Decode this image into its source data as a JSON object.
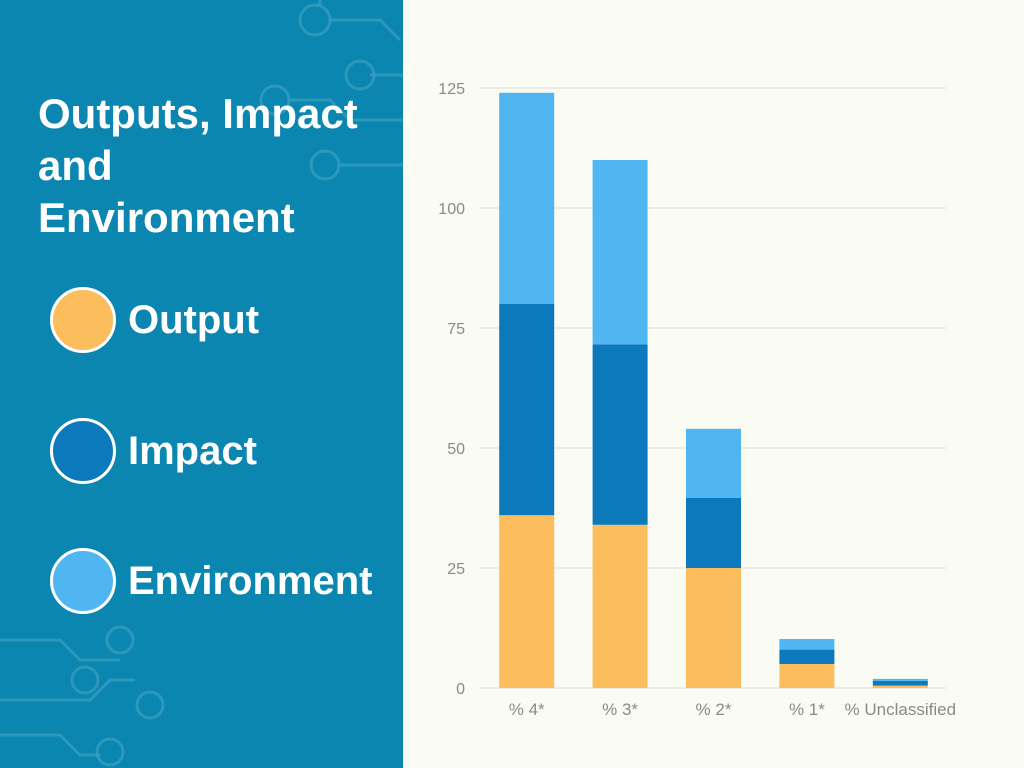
{
  "title": "Outputs, Impact and Environment",
  "colors": {
    "panel": "#0a86b0",
    "background": "#fafbf3",
    "output": "#fcbd5c",
    "impact": "#0d79bd",
    "environment": "#4fb6f2",
    "grid": "#dcdcd6",
    "text_muted": "#8a8a8a"
  },
  "legend": [
    {
      "label": "Output",
      "color": "#fcbd5c"
    },
    {
      "label": "Impact",
      "color": "#0d79bd"
    },
    {
      "label": "Environment",
      "color": "#4fb6f2"
    }
  ],
  "chart_data": {
    "type": "bar",
    "stacked": true,
    "categories": [
      "% 4*",
      "% 3*",
      "% 2*",
      "% 1*",
      "% Unclassified"
    ],
    "series": [
      {
        "name": "Output",
        "color": "#fcbd5c",
        "values": [
          36,
          34,
          25,
          5,
          0.5
        ]
      },
      {
        "name": "Impact",
        "color": "#0d79bd",
        "values": [
          44,
          37.6,
          14.6,
          3,
          1
        ]
      },
      {
        "name": "Environment",
        "color": "#4fb6f2",
        "values": [
          44,
          38.4,
          14.4,
          2.2,
          0.4
        ]
      }
    ],
    "ylim": [
      0,
      125
    ],
    "yticks": [
      0,
      25,
      50,
      75,
      100,
      125
    ],
    "grid": true,
    "legend_position": "left"
  }
}
